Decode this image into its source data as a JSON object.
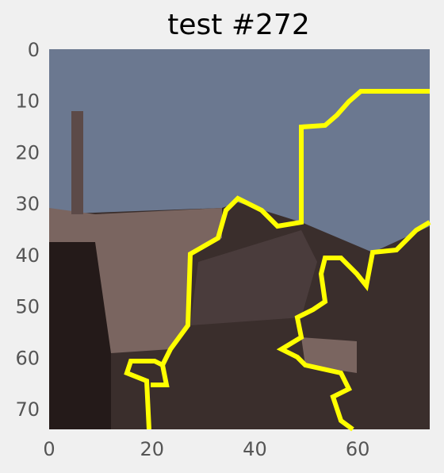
{
  "chart_data": {
    "type": "image",
    "title": "test #272",
    "xlim": [
      0,
      74
    ],
    "ylim": [
      74,
      0
    ],
    "xticks": [
      0,
      20,
      40,
      60
    ],
    "yticks": [
      0,
      10,
      20,
      30,
      40,
      50,
      60,
      70
    ],
    "grid": false,
    "contour_color": "#ffff00"
  }
}
